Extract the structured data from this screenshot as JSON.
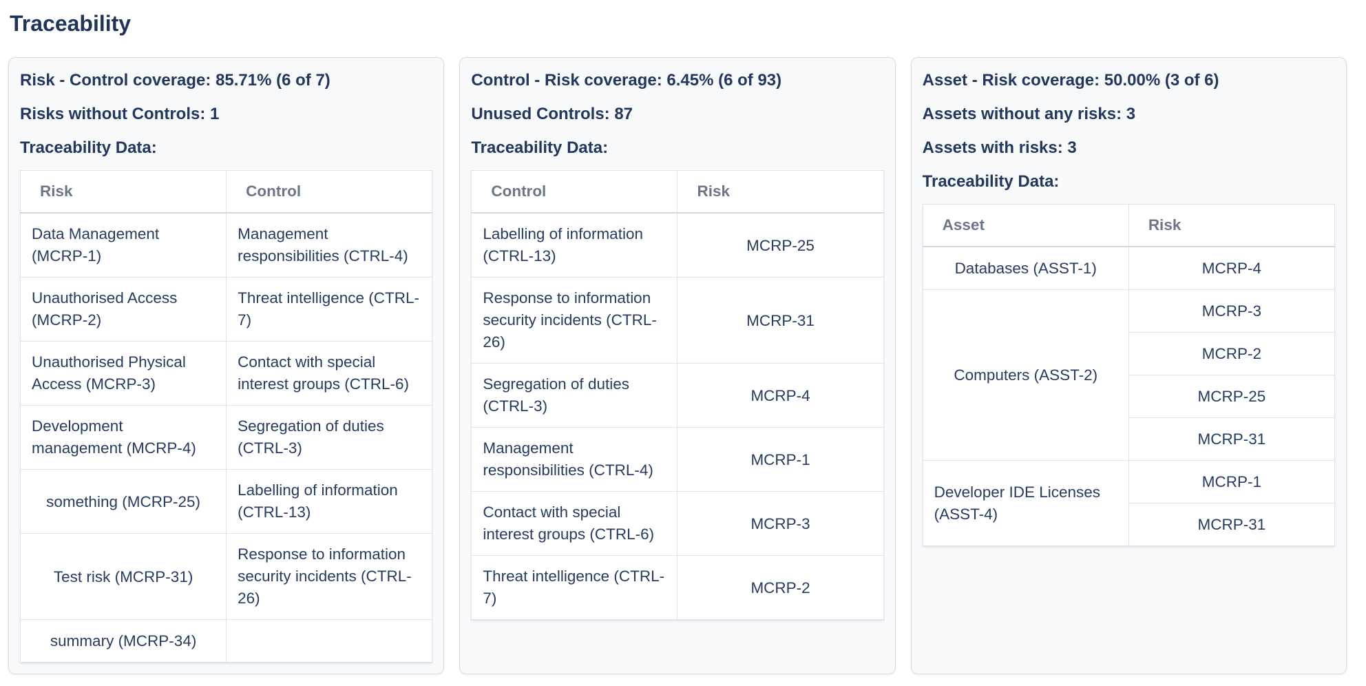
{
  "page": {
    "title": "Traceability"
  },
  "colors": {
    "heading_navy": "#21375d",
    "cell_navy": "#263b61",
    "table_header_gray": "#6b7688",
    "card_background": "#f8f9fb",
    "card_border": "#d9dde3",
    "table_border": "#e0e3e8"
  },
  "cards": [
    {
      "name": "risk-control-coverage",
      "stats": [
        "Risk - Control coverage: 85.71% (6 of 7)",
        "Risks without Controls: 1",
        "Traceability Data:"
      ],
      "table": {
        "headers": [
          "Risk",
          "Control"
        ],
        "rows": [
          [
            {
              "text": "Data Management (MCRP-1)"
            },
            {
              "text": "Management responsibilities (CTRL-4)"
            }
          ],
          [
            {
              "text": "Unauthorised Access (MCRP-2)"
            },
            {
              "text": "Threat intelligence (CTRL-7)"
            }
          ],
          [
            {
              "text": "Unauthorised Physical Access (MCRP-3)"
            },
            {
              "text": "Contact with special interest groups (CTRL-6)"
            }
          ],
          [
            {
              "text": "Development management (MCRP-4)"
            },
            {
              "text": "Segregation of duties (CTRL-3)"
            }
          ],
          [
            {
              "text": "something (MCRP-25)"
            },
            {
              "text": "Labelling of information (CTRL-13)"
            }
          ],
          [
            {
              "text": "Test risk (MCRP-31)"
            },
            {
              "text": "Response to information security incidents (CTRL-26)"
            }
          ],
          [
            {
              "text": "summary (MCRP-34)"
            },
            {
              "text": ""
            }
          ]
        ]
      }
    },
    {
      "name": "control-risk-coverage",
      "stats": [
        "Control - Risk coverage: 6.45% (6 of 93)",
        "Unused Controls: 87",
        "Traceability Data:"
      ],
      "table": {
        "headers": [
          "Control",
          "Risk"
        ],
        "rows": [
          [
            {
              "text": "Labelling of information (CTRL-13)"
            },
            {
              "text": "MCRP-25"
            }
          ],
          [
            {
              "text": "Response to information security incidents (CTRL-26)"
            },
            {
              "text": "MCRP-31"
            }
          ],
          [
            {
              "text": "Segregation of duties (CTRL-3)"
            },
            {
              "text": "MCRP-4"
            }
          ],
          [
            {
              "text": "Management responsibilities (CTRL-4)"
            },
            {
              "text": "MCRP-1"
            }
          ],
          [
            {
              "text": "Contact with special interest groups (CTRL-6)"
            },
            {
              "text": "MCRP-3"
            }
          ],
          [
            {
              "text": "Threat intelligence (CTRL-7)"
            },
            {
              "text": "MCRP-2"
            }
          ]
        ]
      }
    },
    {
      "name": "asset-risk-coverage",
      "stats": [
        "Asset - Risk coverage: 50.00% (3 of 6)",
        "Assets without any risks: 3",
        "Assets with risks: 3",
        "Traceability Data:"
      ],
      "table": {
        "headers": [
          "Asset",
          "Risk"
        ],
        "rows": [
          [
            {
              "text": "Databases (ASST-1)"
            },
            {
              "text": "MCRP-4"
            }
          ],
          [
            {
              "text": "Computers (ASST-2)",
              "rowspan": 4
            },
            {
              "text": "MCRP-3"
            }
          ],
          [
            {
              "text": "MCRP-2"
            }
          ],
          [
            {
              "text": "MCRP-25"
            }
          ],
          [
            {
              "text": "MCRP-31"
            }
          ],
          [
            {
              "text": "Developer IDE Licenses (ASST-4)",
              "rowspan": 2
            },
            {
              "text": "MCRP-1"
            }
          ],
          [
            {
              "text": "MCRP-31"
            }
          ]
        ]
      }
    }
  ]
}
